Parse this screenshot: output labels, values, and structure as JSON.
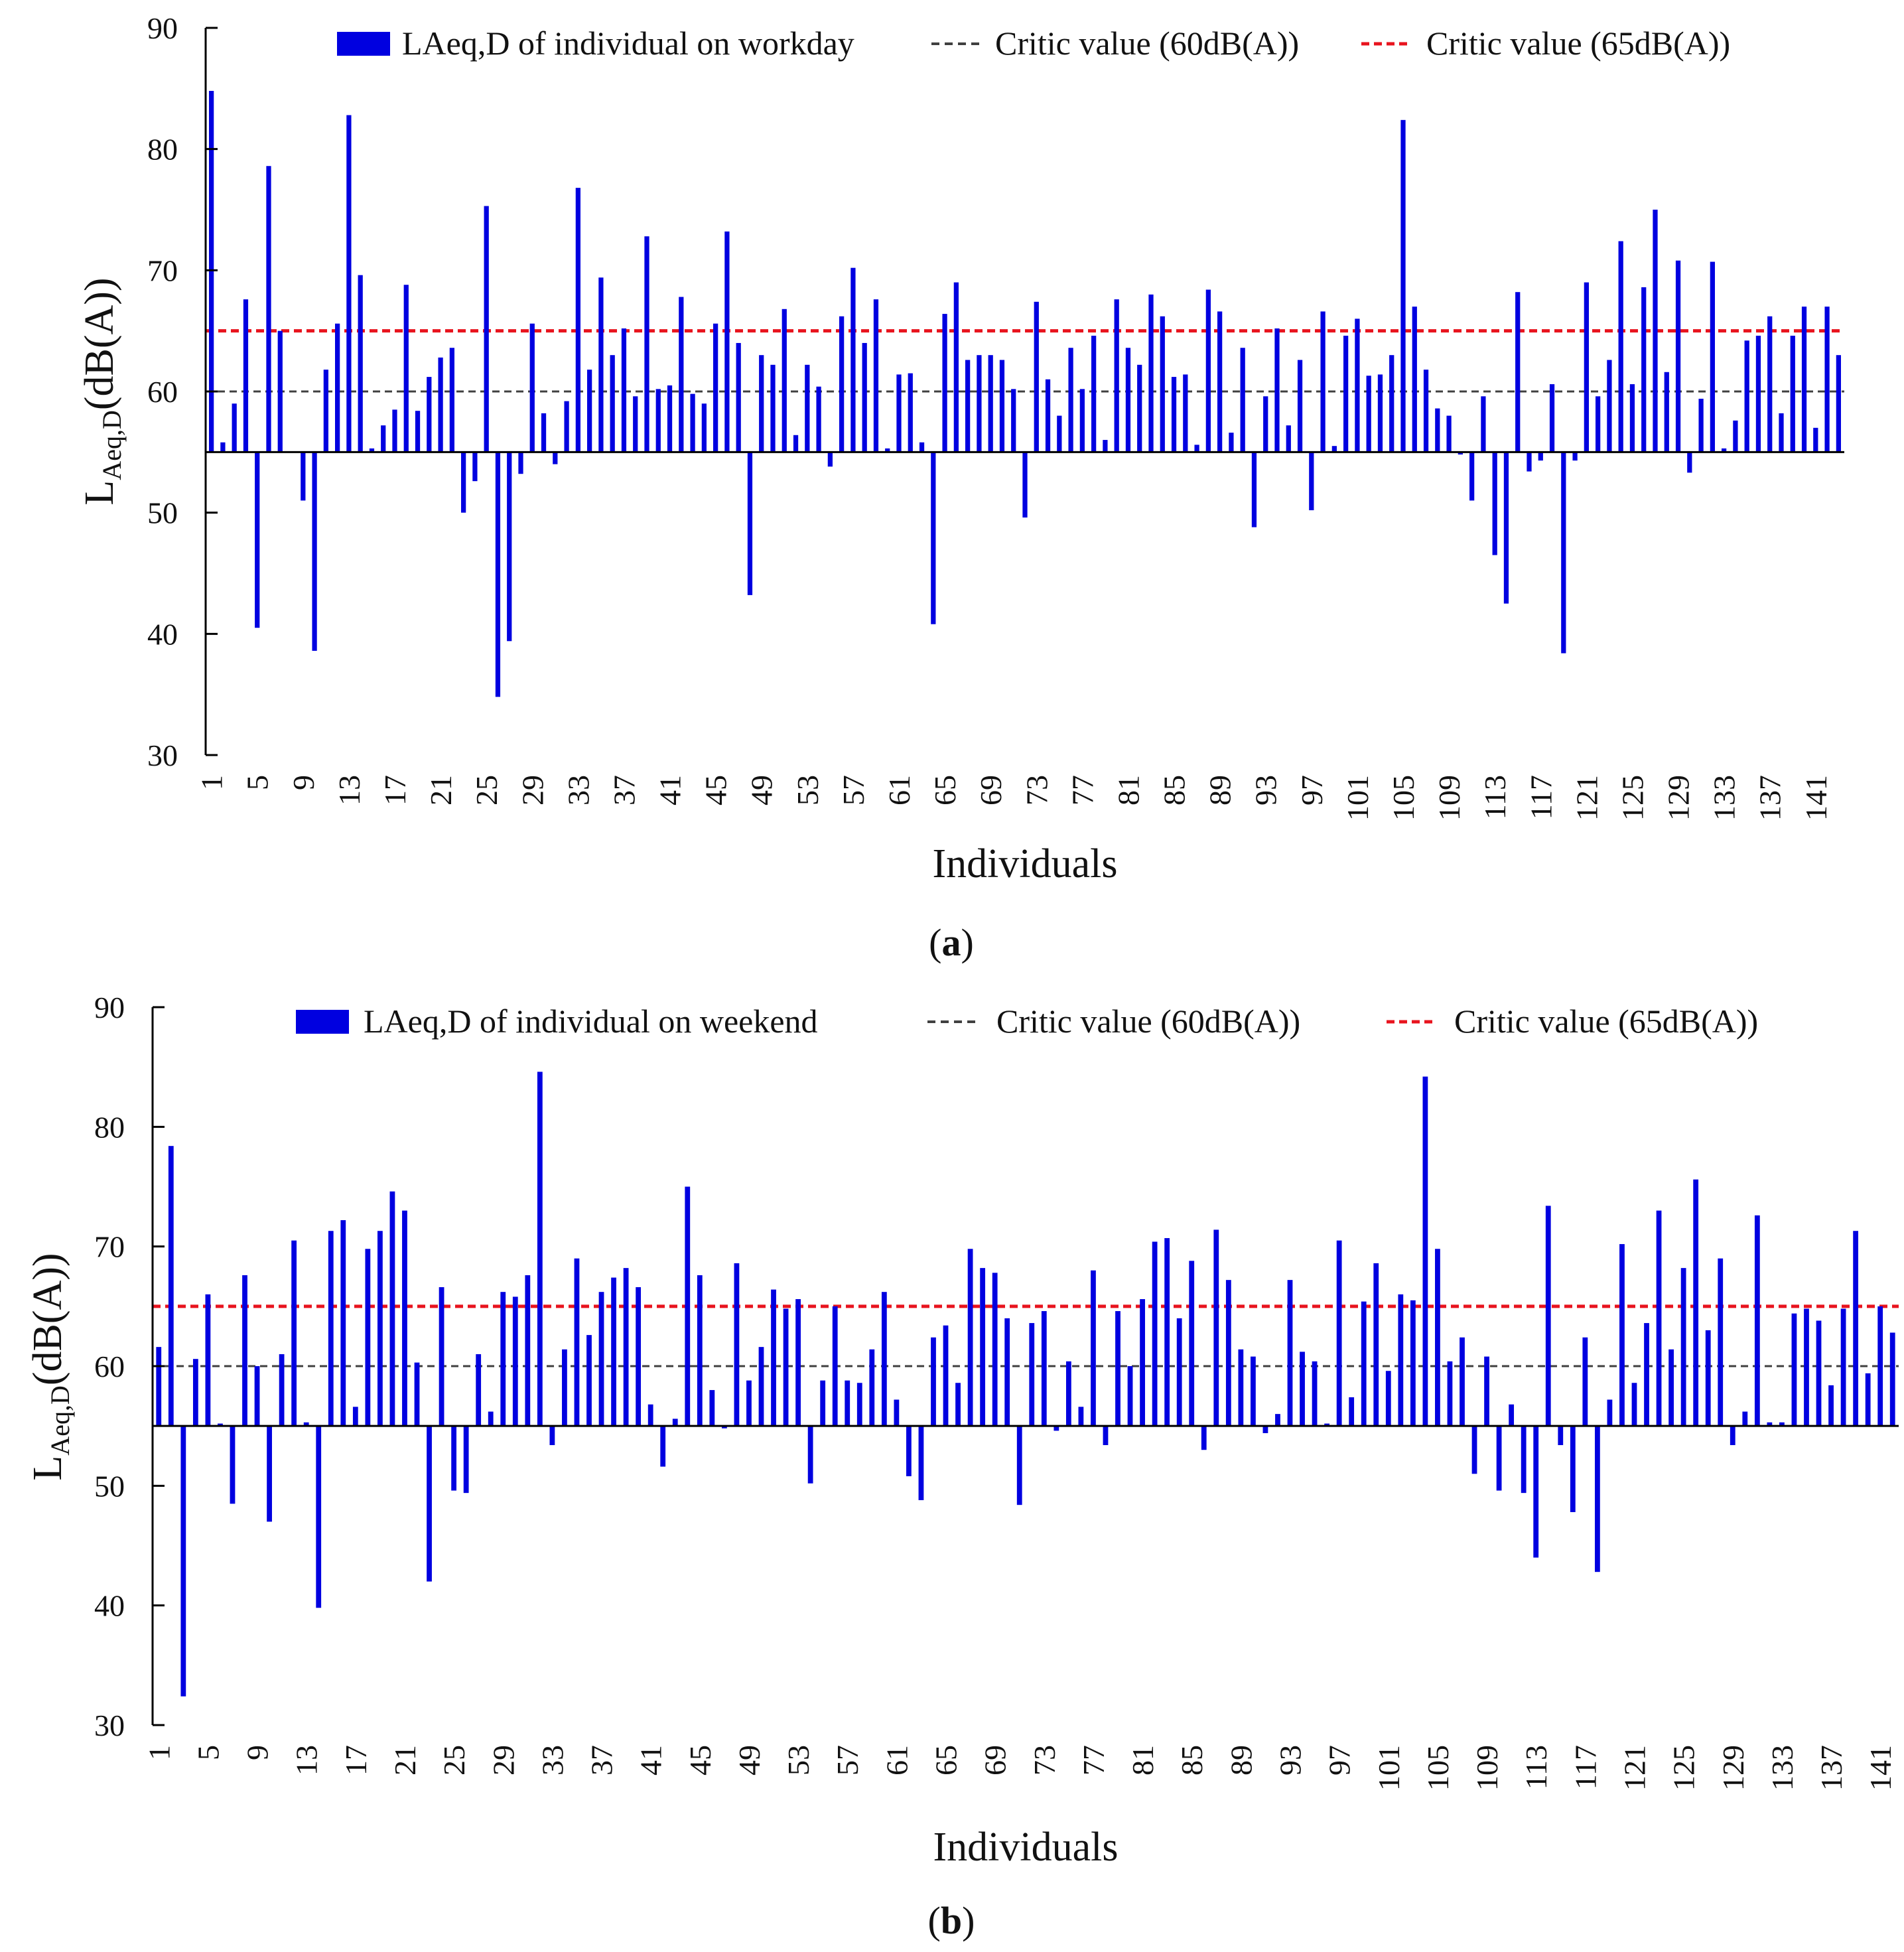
{
  "chart_data": [
    {
      "type": "bar",
      "panel_label": "a",
      "baseline": 55,
      "ylim": [
        30,
        90
      ],
      "yticks": [
        30,
        40,
        50,
        60,
        70,
        80,
        90
      ],
      "xlabel": "Individuals",
      "ylabel_main": "L",
      "ylabel_sub": "Aeq,D",
      "ylabel_unit": "(dB(A))",
      "x_tick_labels": [
        "1",
        "5",
        "9",
        "13",
        "17",
        "21",
        "25",
        "29",
        "33",
        "37",
        "41",
        "45",
        "49",
        "53",
        "57",
        "61",
        "65",
        "69",
        "73",
        "77",
        "81",
        "85",
        "89",
        "93",
        "97",
        "101",
        "105",
        "109",
        "113",
        "117",
        "121",
        "125",
        "129",
        "133",
        "137",
        "141"
      ],
      "series": [
        {
          "name": "LAeq,D of individual on workday",
          "color": "#0000e0",
          "values": [
            84.8,
            55.8,
            59.0,
            67.6,
            40.5,
            78.6,
            65.0,
            55.0,
            51.0,
            38.6,
            61.8,
            65.6,
            82.8,
            69.6,
            55.3,
            57.2,
            58.5,
            68.8,
            58.4,
            61.2,
            62.8,
            63.6,
            50.0,
            52.6,
            75.3,
            34.8,
            39.4,
            53.2,
            65.6,
            58.2,
            54.0,
            59.2,
            76.8,
            61.8,
            69.4,
            63.0,
            65.2,
            59.6,
            72.8,
            60.2,
            60.5,
            67.8,
            59.8,
            59.0,
            65.6,
            73.2,
            64.0,
            43.2,
            63.0,
            62.2,
            66.8,
            56.4,
            62.2,
            60.4,
            53.8,
            66.2,
            70.2,
            64.0,
            67.6,
            55.3,
            61.4,
            61.5,
            55.8,
            40.8,
            66.4,
            69.0,
            62.6,
            63.0,
            63.0,
            62.6,
            60.2,
            49.6,
            67.4,
            61.0,
            58.0,
            63.6,
            60.2,
            64.6,
            56.0,
            67.6,
            63.6,
            62.2,
            68.0,
            66.2,
            61.2,
            61.4,
            55.6,
            68.4,
            66.6,
            56.6,
            63.6,
            48.8,
            59.6,
            65.2,
            57.2,
            62.6,
            50.2,
            66.6,
            55.5,
            64.6,
            66.0,
            61.3,
            61.4,
            63.0,
            82.4,
            67.0,
            61.8,
            58.6,
            58.0,
            54.8,
            51.0,
            59.6,
            46.5,
            42.5,
            68.2,
            53.4,
            54.3,
            60.6,
            38.4,
            54.3,
            69.0,
            59.6,
            62.6,
            72.4,
            60.6,
            68.6,
            75.0,
            61.6,
            70.8,
            53.3,
            59.4,
            70.7,
            55.3,
            57.6,
            64.2,
            64.6,
            66.2,
            58.2,
            64.6,
            67.0,
            57.0,
            67.0,
            63.0
          ]
        }
      ],
      "reference_lines": [
        {
          "name": "Critic value (60dB(A))",
          "value": 60,
          "color": "#404040"
        },
        {
          "name": "Critic value (65dB(A))",
          "value": 65,
          "color": "#e8141e"
        }
      ]
    },
    {
      "type": "bar",
      "panel_label": "b",
      "baseline": 55,
      "ylim": [
        30,
        90
      ],
      "yticks": [
        30,
        40,
        50,
        60,
        70,
        80,
        90
      ],
      "xlabel": "Individuals",
      "ylabel_main": "L",
      "ylabel_sub": "Aeq,D",
      "ylabel_unit": "(dB(A))",
      "x_tick_labels": [
        "1",
        "5",
        "9",
        "13",
        "17",
        "21",
        "25",
        "29",
        "33",
        "37",
        "41",
        "45",
        "49",
        "53",
        "57",
        "61",
        "65",
        "69",
        "73",
        "77",
        "81",
        "85",
        "89",
        "93",
        "97",
        "101",
        "105",
        "109",
        "113",
        "117",
        "121",
        "125",
        "129",
        "133",
        "137",
        "141"
      ],
      "series": [
        {
          "name": "LAeq,D of individual on weekend",
          "color": "#0000e0",
          "values": [
            61.6,
            78.4,
            32.4,
            60.6,
            66.0,
            55.2,
            48.5,
            67.6,
            60.0,
            47.0,
            61.0,
            70.5,
            55.3,
            39.8,
            71.3,
            72.2,
            56.6,
            69.8,
            71.3,
            74.6,
            73.0,
            60.3,
            42.0,
            66.6,
            49.6,
            49.4,
            61.0,
            56.2,
            66.2,
            65.8,
            67.6,
            84.6,
            53.4,
            61.4,
            69.0,
            62.6,
            66.2,
            67.4,
            68.2,
            66.6,
            56.8,
            51.6,
            55.6,
            75.0,
            67.6,
            58.0,
            54.8,
            68.6,
            58.8,
            61.6,
            66.4,
            64.8,
            65.6,
            50.2,
            58.8,
            65.0,
            58.8,
            58.6,
            61.4,
            66.2,
            57.2,
            50.8,
            48.8,
            62.4,
            63.4,
            58.6,
            69.8,
            68.2,
            67.8,
            64.0,
            48.4,
            63.6,
            64.6,
            54.6,
            60.4,
            56.6,
            68.0,
            53.4,
            64.6,
            60.0,
            65.6,
            70.4,
            70.7,
            64.0,
            68.8,
            53.0,
            71.4,
            67.2,
            61.4,
            60.8,
            54.4,
            56.0,
            67.2,
            61.2,
            60.4,
            55.2,
            70.5,
            57.4,
            65.4,
            68.6,
            59.6,
            66.0,
            65.5,
            84.2,
            69.8,
            60.4,
            62.4,
            51.0,
            60.8,
            49.6,
            56.8,
            49.4,
            44.0,
            73.4,
            53.4,
            47.8,
            62.4,
            42.8,
            57.2,
            70.2,
            58.6,
            63.6,
            73.0,
            61.4,
            68.2,
            75.6,
            63.0,
            69.0,
            53.4,
            56.2,
            72.6,
            55.3,
            55.3,
            64.4,
            64.8,
            63.8,
            58.4,
            64.8,
            71.3,
            59.4,
            65.0,
            62.8
          ]
        }
      ],
      "reference_lines": [
        {
          "name": "Critic value (60dB(A))",
          "value": 60,
          "color": "#404040"
        },
        {
          "name": "Critic value (65dB(A))",
          "value": 65,
          "color": "#e8141e"
        }
      ]
    }
  ]
}
